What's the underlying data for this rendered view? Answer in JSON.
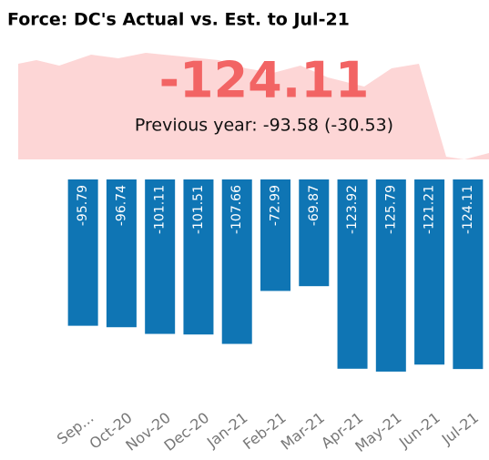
{
  "chart_data": {
    "type": "bar",
    "title": "Force: DC's Actual vs. Est. to Jul-21",
    "kpi_value": "-124.11",
    "kpi_comparison": "Previous year: -93.58 (-30.53)",
    "categories": [
      "Sep...",
      "Oct-20",
      "Nov-20",
      "Dec-20",
      "Jan-21",
      "Feb-21",
      "Mar-21",
      "Apr-21",
      "May-21",
      "Jun-21",
      "Jul-21"
    ],
    "values": [
      -95.79,
      -96.74,
      -101.11,
      -101.51,
      -107.66,
      -72.99,
      -69.87,
      -123.92,
      -125.79,
      -121.21,
      -124.11
    ],
    "color": "#0f75b4",
    "ylim": [
      -130,
      0
    ]
  }
}
